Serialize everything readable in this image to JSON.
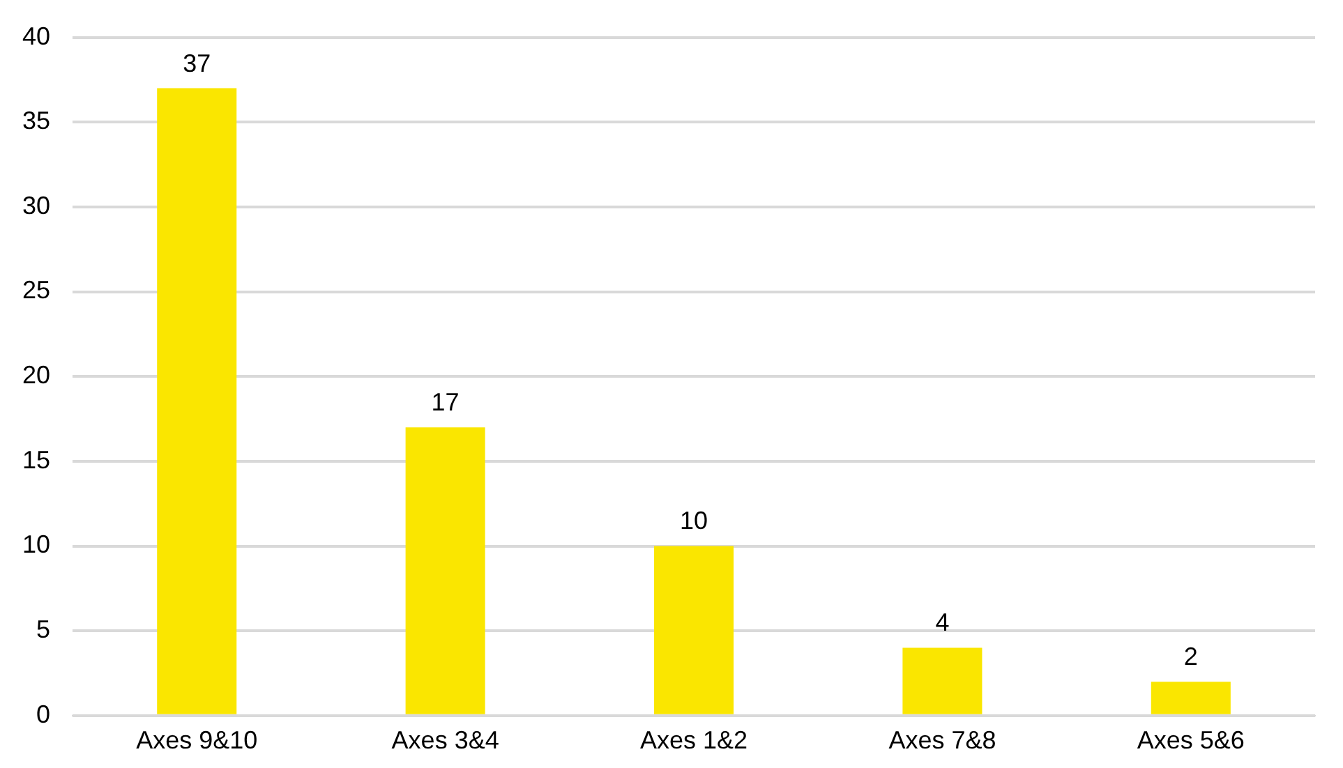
{
  "chart_data": {
    "type": "bar",
    "categories": [
      "Axes 9&10",
      "Axes 3&4",
      "Axes 1&2",
      "Axes 7&8",
      "Axes 5&6"
    ],
    "values": [
      37,
      17,
      10,
      4,
      2
    ],
    "color": "#fae600",
    "ylim": [
      0,
      40
    ],
    "yticks": [
      0,
      5,
      10,
      15,
      20,
      25,
      30,
      35,
      40
    ],
    "grid": "y",
    "data_labels": true
  }
}
